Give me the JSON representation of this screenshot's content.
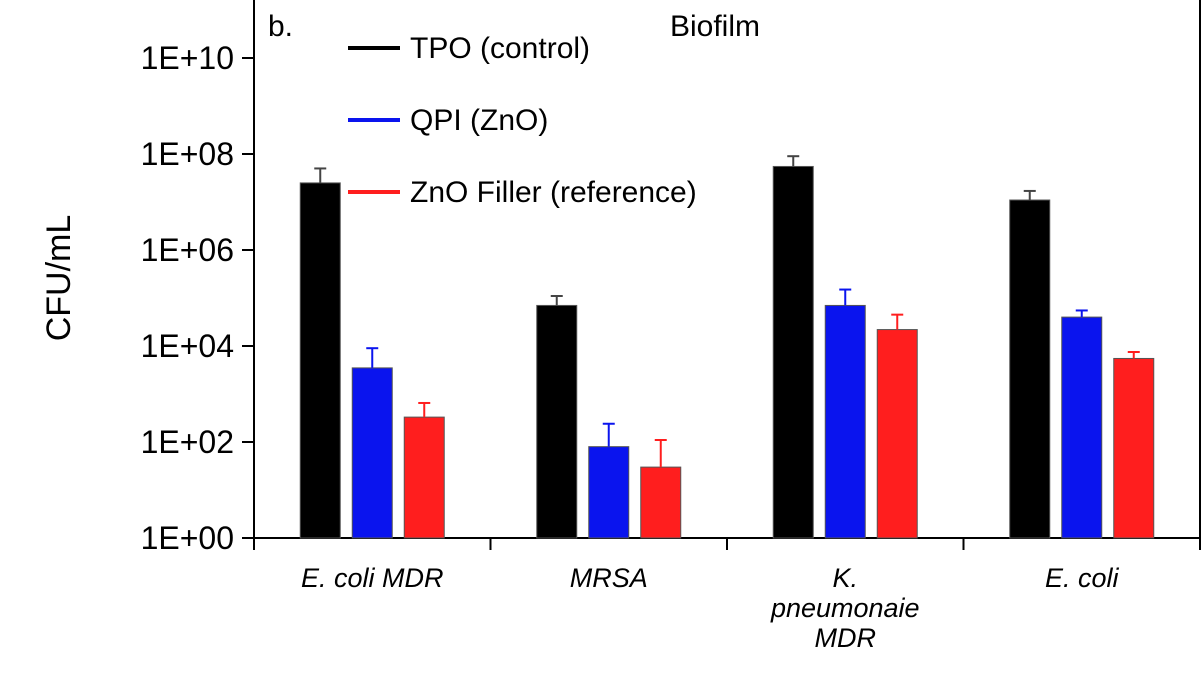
{
  "chart_data": {
    "type": "bar",
    "panel_label": "b.",
    "title": "Biofilm",
    "xlabel": "",
    "ylabel": "CFU/mL",
    "yscale": "log",
    "ylim": [
      1,
      10000000000
    ],
    "yticks": [
      "1E+00",
      "1E+02",
      "1E+04",
      "1E+06",
      "1E+08",
      "1E+10"
    ],
    "categories": [
      [
        "E. coli MDR"
      ],
      [
        "MRSA"
      ],
      [
        "K.",
        "pneumonaie",
        "MDR"
      ],
      [
        "E. coli"
      ]
    ],
    "series": [
      {
        "name": "TPO (control)",
        "color": "#000000",
        "values": [
          25000000,
          70000,
          55000000,
          11000000
        ],
        "errors": [
          50000000,
          110000,
          90000000,
          17000000
        ]
      },
      {
        "name": "QPI (ZnO)",
        "color": "#0a14ee",
        "values": [
          3500,
          80,
          70000,
          40000
        ],
        "errors": [
          9000,
          240,
          150000,
          55000
        ]
      },
      {
        "name": "ZnO Filler (reference)",
        "color": "#ff1e1e",
        "values": [
          330,
          30,
          22000,
          5500
        ],
        "errors": [
          650,
          110,
          45000,
          7500
        ]
      }
    ],
    "legend_position": "top-left",
    "grid": false
  }
}
